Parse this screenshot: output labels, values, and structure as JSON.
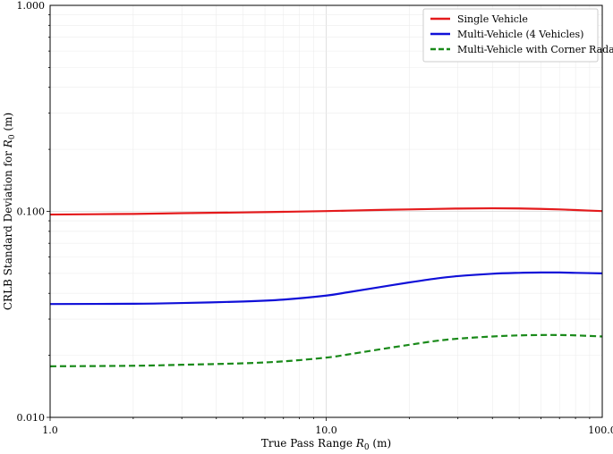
{
  "chart_data": {
    "type": "line",
    "title": "",
    "xlabel_main": "True Pass Range ",
    "xlabel_sym": "R",
    "xlabel_sub": "0",
    "xlabel_unit": " (m)",
    "ylabel_main": "CRLB Standard Deviation for ",
    "ylabel_sym": "R",
    "ylabel_sub": "0",
    "ylabel_unit": " (m)",
    "xscale": "log",
    "yscale": "log",
    "xlim": [
      1,
      100
    ],
    "ylim": [
      0.01,
      1
    ],
    "xticks": [
      1,
      10,
      100
    ],
    "xtick_labels": [
      "1.0",
      "10.0",
      "100.0"
    ],
    "yticks": [
      0.01,
      0.1,
      1
    ],
    "ytick_labels": [
      "0.010",
      "0.100",
      "1.000"
    ],
    "grid": true,
    "legend_position": "top-right",
    "series": [
      {
        "name": "Single Vehicle",
        "color": "#e41a1c",
        "style": "solid",
        "x": [
          1,
          2,
          3,
          5,
          7,
          10,
          15,
          20,
          30,
          40,
          50,
          60,
          70,
          80,
          100
        ],
        "y": [
          0.0965,
          0.0972,
          0.098,
          0.0988,
          0.0995,
          0.1003,
          0.1015,
          0.1022,
          0.1032,
          0.1035,
          0.1033,
          0.1028,
          0.1022,
          0.1015,
          0.1003
        ]
      },
      {
        "name": "Multi-Vehicle (4 Vehicles)",
        "color": "#1010d8",
        "style": "solid",
        "x": [
          1,
          2,
          3,
          5,
          7,
          10,
          12,
          15,
          20,
          25,
          30,
          40,
          50,
          60,
          70,
          80,
          100
        ],
        "y": [
          0.0355,
          0.0356,
          0.0359,
          0.0365,
          0.0373,
          0.039,
          0.0405,
          0.0425,
          0.0452,
          0.0472,
          0.0485,
          0.0498,
          0.0503,
          0.0505,
          0.0505,
          0.0503,
          0.05
        ]
      },
      {
        "name": "Multi-Vehicle with Corner Radars",
        "color": "#1a8a1a",
        "style": "dashed",
        "x": [
          1,
          2,
          3,
          5,
          7,
          10,
          12,
          15,
          20,
          25,
          30,
          40,
          50,
          60,
          70,
          80,
          100
        ],
        "y": [
          0.0177,
          0.0178,
          0.018,
          0.0183,
          0.0187,
          0.0195,
          0.0202,
          0.0212,
          0.0225,
          0.0235,
          0.0241,
          0.0247,
          0.025,
          0.0251,
          0.0251,
          0.025,
          0.0247
        ]
      }
    ]
  }
}
